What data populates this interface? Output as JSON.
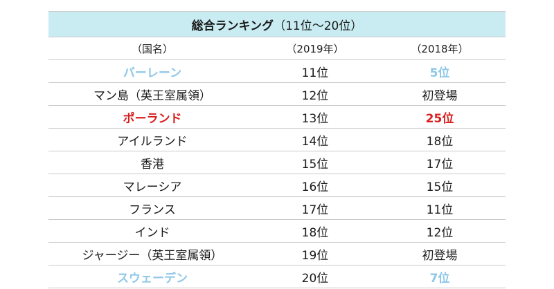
{
  "table": {
    "title_main": "総合ランキング",
    "title_sub": "（11位～20位）",
    "headers": {
      "country": "（国名）",
      "y2019": "（2019年）",
      "y2018": "（2018年）"
    },
    "rows": [
      {
        "country": "バーレーン",
        "y2019": "11位",
        "y2018": "5位",
        "style": "blue"
      },
      {
        "country": "マン島（英王室属領）",
        "y2019": "12位",
        "y2018": "初登場",
        "style": "normal"
      },
      {
        "country": "ポーランド",
        "y2019": "13位",
        "y2018": "25位",
        "style": "red"
      },
      {
        "country": "アイルランド",
        "y2019": "14位",
        "y2018": "18位",
        "style": "normal"
      },
      {
        "country": "香港",
        "y2019": "15位",
        "y2018": "17位",
        "style": "normal"
      },
      {
        "country": "マレーシア",
        "y2019": "16位",
        "y2018": "15位",
        "style": "normal"
      },
      {
        "country": "フランス",
        "y2019": "17位",
        "y2018": "11位",
        "style": "normal"
      },
      {
        "country": "インド",
        "y2019": "18位",
        "y2018": "12位",
        "style": "normal"
      },
      {
        "country": "ジャージー（英王室属領）",
        "y2019": "19位",
        "y2018": "初登場",
        "style": "normal"
      },
      {
        "country": "スウェーデン",
        "y2019": "20位",
        "y2018": "7位",
        "style": "blue"
      }
    ]
  },
  "colors": {
    "title_background": "#c9ecf2",
    "highlight_blue": "#8ec7e8",
    "highlight_red": "#d81e1e",
    "rule": "#c9c9c9"
  }
}
